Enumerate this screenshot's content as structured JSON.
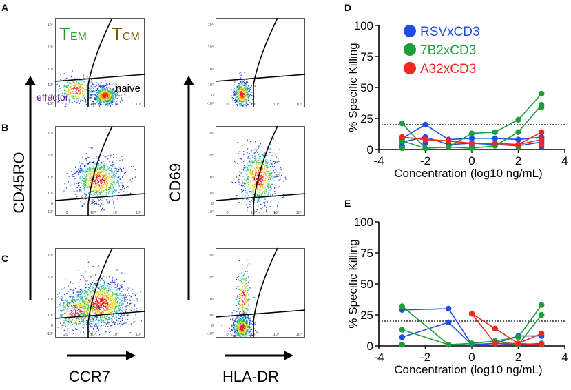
{
  "panels": {
    "a": "A",
    "b": "B",
    "c": "C",
    "d": "D",
    "e": "E"
  },
  "flow": {
    "left_y_label": "CD45RO",
    "left_x_label": "CCR7",
    "right_y_label": "CD69",
    "right_x_label": "HLA-DR",
    "gate_tem_main": "T",
    "gate_tem_sub": "EM",
    "gate_tcm_main": "T",
    "gate_tcm_sub": "CM",
    "gate_effector": "effector",
    "gate_naive": "naive",
    "tick_y": [
      "10⁵",
      "10⁴",
      "10³",
      "10²",
      "0",
      "-10²"
    ],
    "tick_x": [
      "0",
      "10³",
      "10⁴",
      "10⁵"
    ],
    "colors": {
      "tem": "#2ca02c",
      "tcm": "#7a5a00",
      "effector": "#6a1b9a"
    }
  },
  "chart_data": [
    {
      "type": "scatter",
      "panel": "D",
      "xlabel": "Concentration (log10 ng/mL)",
      "ylabel": "% Specific Killing",
      "xlim": [
        -4,
        4
      ],
      "ylim": [
        0,
        100
      ],
      "xticks": [
        "-4",
        "-2",
        "0",
        "2",
        "4"
      ],
      "yticks": [
        "0",
        "25",
        "50",
        "75",
        "100"
      ],
      "threshold": 20,
      "legend": [
        {
          "name": "RSVxCD3",
          "color": "#1f4fe0"
        },
        {
          "name": "7B2xCD3",
          "color": "#1e9e3a"
        },
        {
          "name": "A32xCD3",
          "color": "#ee2a1f"
        }
      ],
      "series": [
        {
          "name": "RSVxCD3",
          "color": "#1f4fe0",
          "points": [
            [
              -3,
              9
            ],
            [
              -3,
              6
            ],
            [
              -3,
              3
            ],
            [
              -2,
              20
            ],
            [
              -2,
              10
            ],
            [
              -2,
              5
            ],
            [
              -1,
              8
            ],
            [
              -1,
              4
            ],
            [
              0,
              9
            ],
            [
              0,
              5
            ],
            [
              0,
              2
            ],
            [
              1,
              9
            ],
            [
              1,
              4
            ],
            [
              2,
              8
            ],
            [
              2,
              3
            ],
            [
              3,
              10
            ],
            [
              3,
              6
            ],
            [
              3,
              2
            ]
          ]
        },
        {
          "name": "7B2xCD3",
          "color": "#1e9e3a",
          "points": [
            [
              -3,
              21
            ],
            [
              -3,
              7
            ],
            [
              -3,
              1
            ],
            [
              -2,
              1
            ],
            [
              -1,
              2
            ],
            [
              0,
              13
            ],
            [
              0,
              1
            ],
            [
              1,
              14
            ],
            [
              1,
              3
            ],
            [
              2,
              24
            ],
            [
              2,
              14
            ],
            [
              2,
              2
            ],
            [
              3,
              45
            ],
            [
              3,
              36
            ],
            [
              3,
              34
            ]
          ]
        },
        {
          "name": "A32xCD3",
          "color": "#ee2a1f",
          "points": [
            [
              -3,
              10
            ],
            [
              -2,
              8
            ],
            [
              -1,
              7
            ],
            [
              0,
              5
            ],
            [
              1,
              5
            ],
            [
              2,
              4
            ],
            [
              3,
              14
            ],
            [
              3,
              8
            ],
            [
              3,
              4
            ]
          ]
        }
      ]
    },
    {
      "type": "scatter",
      "panel": "E",
      "xlabel": "Concentration (log10 ng/mL)",
      "ylabel": "% Specific Killing",
      "xlim": [
        -4,
        4
      ],
      "ylim": [
        0,
        100
      ],
      "xticks": [
        "-4",
        "-2",
        "0",
        "2",
        "4"
      ],
      "yticks": [
        "0",
        "25",
        "50",
        "75",
        "100"
      ],
      "threshold": 20,
      "legend": [],
      "series": [
        {
          "name": "RSVxCD3",
          "color": "#1f4fe0",
          "points": [
            [
              -3,
              29
            ],
            [
              -3,
              7
            ],
            [
              -3,
              1
            ],
            [
              -1,
              30
            ],
            [
              -1,
              19
            ],
            [
              -1,
              1
            ],
            [
              0,
              1
            ],
            [
              1,
              2
            ],
            [
              2,
              8
            ],
            [
              2,
              1
            ],
            [
              3,
              8
            ],
            [
              3,
              2
            ]
          ]
        },
        {
          "name": "7B2xCD3",
          "color": "#1e9e3a",
          "points": [
            [
              -3,
              32
            ],
            [
              -3,
              13
            ],
            [
              -3,
              1
            ],
            [
              -1,
              1
            ],
            [
              0,
              2
            ],
            [
              1,
              4
            ],
            [
              2,
              7
            ],
            [
              2,
              1
            ],
            [
              3,
              33
            ],
            [
              3,
              25
            ],
            [
              3,
              2
            ]
          ]
        },
        {
          "name": "A32xCD3",
          "color": "#ee2a1f",
          "points": [
            [
              0,
              26
            ],
            [
              1,
              14
            ],
            [
              1,
              2
            ],
            [
              2,
              2
            ],
            [
              3,
              10
            ],
            [
              3,
              1
            ]
          ]
        }
      ]
    }
  ]
}
